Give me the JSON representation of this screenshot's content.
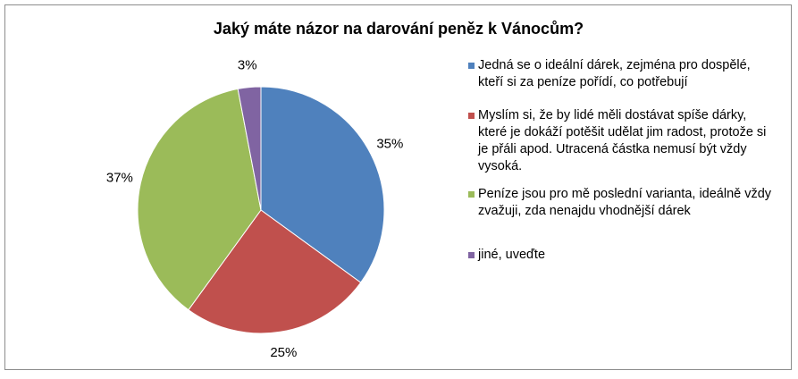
{
  "chart_data": {
    "type": "pie",
    "title": "Jaký  máte názor na darování peněz k Vánocům?",
    "categories": [
      "Jedná se o ideální dárek, zejména pro dospělé, kteří si za peníze pořídí, co potřebují",
      "Myslím si, že by lidé měli dostávat spíše dárky, které je dokáží potěšit udělat jim radost, protože si je přáli apod. Utracená částka nemusí být vždy vysoká.",
      "Peníze jsou pro mě poslední varianta, ideálně vždy zvažuji, zda nenajdu vhodnější dárek",
      "jiné, uveďte"
    ],
    "values": [
      35,
      25,
      37,
      3
    ],
    "value_labels": [
      "35%",
      "25%",
      "37%",
      "3%"
    ],
    "colors": [
      "#4f81bd",
      "#c0504d",
      "#9bbb59",
      "#8064a2"
    ],
    "legend": "right"
  }
}
